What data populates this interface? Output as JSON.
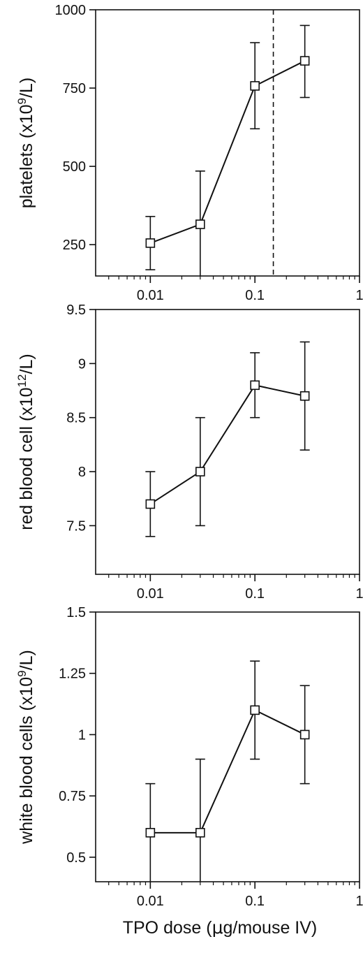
{
  "chart_data": [
    {
      "type": "line",
      "x": [
        0.01,
        0.03,
        0.1,
        0.3
      ],
      "y": [
        255,
        315,
        757,
        837
      ],
      "y_err_low": [
        170,
        0,
        620,
        720
      ],
      "y_err_high": [
        340,
        485,
        895,
        950
      ],
      "xscale": "log",
      "xlim": [
        0.003,
        1
      ],
      "ylim": [
        150,
        1000
      ],
      "xticks": [
        0.01,
        0.1,
        1
      ],
      "xtick_labels": [
        "0.01",
        "0.1",
        "1"
      ],
      "yticks": [
        250,
        500,
        750,
        1000
      ],
      "ytick_labels": [
        "250",
        "500",
        "750",
        "1000"
      ],
      "ylabel_main": "platelets (x10",
      "ylabel_sup": "9",
      "ylabel_tail": "/L)",
      "reference_line_x": 0.15,
      "marker": "open-square",
      "grid": false
    },
    {
      "type": "line",
      "x": [
        0.01,
        0.03,
        0.1,
        0.3
      ],
      "y": [
        7.7,
        8.0,
        8.8,
        8.7
      ],
      "y_err_low": [
        7.4,
        7.5,
        8.5,
        8.2
      ],
      "y_err_high": [
        8.0,
        8.5,
        9.1,
        9.2
      ],
      "xscale": "log",
      "xlim": [
        0.003,
        1
      ],
      "ylim": [
        7.05,
        9.5
      ],
      "xticks": [
        0.01,
        0.1,
        1
      ],
      "xtick_labels": [
        "0.01",
        "0.1",
        "1"
      ],
      "yticks": [
        7.5,
        8,
        8.5,
        9,
        9.5
      ],
      "ytick_labels": [
        "7.5",
        "8",
        "8.5",
        "9",
        "9.5"
      ],
      "ylabel_main": "red blood cell (x10",
      "ylabel_sup": "12",
      "ylabel_tail": "/L)",
      "marker": "open-square",
      "grid": false
    },
    {
      "type": "line",
      "x": [
        0.01,
        0.03,
        0.1,
        0.3
      ],
      "y": [
        0.6,
        0.6,
        1.1,
        1.0
      ],
      "y_err_low": [
        0.4,
        0.4,
        0.9,
        0.8
      ],
      "y_err_high": [
        0.8,
        0.9,
        1.3,
        1.2
      ],
      "xscale": "log",
      "xlim": [
        0.003,
        1
      ],
      "ylim": [
        0.4,
        1.5
      ],
      "xticks": [
        0.01,
        0.1,
        1
      ],
      "xtick_labels": [
        "0.01",
        "0.1",
        "1"
      ],
      "yticks": [
        0.5,
        0.75,
        1,
        1.25,
        1.5
      ],
      "ytick_labels": [
        "0.5",
        "0.75",
        "1",
        "1.25",
        "1.5"
      ],
      "ylabel_main": "white blood cells (x10",
      "ylabel_sup": "9",
      "ylabel_tail": "/L)",
      "marker": "open-square",
      "grid": false
    }
  ],
  "xlabel_main": "TPO dose (",
  "xlabel_mu": "μ",
  "xlabel_tail": "g/mouse IV)"
}
